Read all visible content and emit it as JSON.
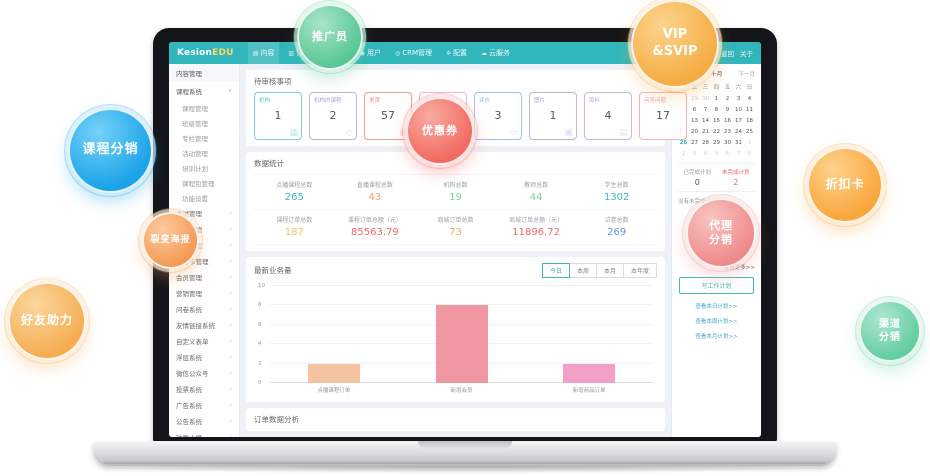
{
  "nav": {
    "logo_part1": "Kesion",
    "logo_part2": "EDU",
    "items": [
      {
        "label": "内容",
        "icon": "content-icon",
        "glyph": "▤",
        "active": true
      },
      {
        "label": "订单",
        "icon": "order-icon",
        "glyph": "▥",
        "active": false
      },
      {
        "label": "互动",
        "icon": "interaction-icon",
        "glyph": "◱",
        "active": false
      },
      {
        "label": "用户",
        "icon": "user-icon",
        "glyph": "◉",
        "active": false
      },
      {
        "label": "CRM管理",
        "icon": "crm-icon",
        "glyph": "◎",
        "active": false
      },
      {
        "label": "配置",
        "icon": "settings-icon",
        "glyph": "✲",
        "active": false
      },
      {
        "label": "云服务",
        "icon": "cloud-icon",
        "glyph": "☁",
        "active": false
      }
    ],
    "refresh_glyph": "⟳",
    "user": "admin",
    "right_links": [
      "返回",
      "关于"
    ]
  },
  "sidebar": {
    "header": "内容管理",
    "course_group": {
      "label": "课程系统",
      "children": [
        "课程管理",
        "班级管理",
        "专栏管理",
        "活动管理",
        "培训计划",
        "课程包管理",
        "功能设置"
      ]
    },
    "groups": [
      "考试管理",
      "资讯管理",
      "电商管理",
      "学习卡管理",
      "会员管理",
      "营销管理",
      "问卷系统",
      "友情链接系统",
      "自定义表单",
      "浮层系统",
      "微信公众号",
      "投票系统",
      "广告系统",
      "公告系统",
      "社群小组",
      "采集系统"
    ]
  },
  "review": {
    "title": "待审核事项",
    "cards": [
      {
        "label": "机构",
        "value": "1",
        "color": "#5ec2c7",
        "icon": "building-icon",
        "glyph": "▦"
      },
      {
        "label": "机构的课程",
        "value": "2",
        "color": "#b49de2",
        "icon": "course-icon",
        "glyph": "◇"
      },
      {
        "label": "发货",
        "value": "57",
        "color": "#f0876f",
        "icon": "truck-icon",
        "glyph": "▣"
      },
      {
        "label": "开发票",
        "value": "",
        "color": "#eda4c9",
        "icon": "invoice-icon",
        "glyph": "▤"
      },
      {
        "label": "评价",
        "value": "3",
        "color": "#8ab4e6",
        "icon": "comment-icon",
        "glyph": "▭"
      },
      {
        "label": "图片",
        "value": "1",
        "color": "#b49de2",
        "icon": "image-icon",
        "glyph": "▣"
      },
      {
        "label": "资料",
        "value": "4",
        "color": "#c2a4e8",
        "icon": "file-icon",
        "glyph": "▤"
      },
      {
        "label": "问答问题",
        "value": "17",
        "color": "#f3a09d",
        "icon": "question-icon",
        "glyph": "?"
      }
    ]
  },
  "stats": {
    "title": "数据统计",
    "rows": [
      [
        {
          "label": "点播课程总数",
          "value": "265",
          "color": "#3bb6c4"
        },
        {
          "label": "直播课程总数",
          "value": "43",
          "color": "#f5a46b"
        },
        {
          "label": "机构总数",
          "value": "19",
          "color": "#7ed09a"
        },
        {
          "label": "教师总数",
          "value": "44",
          "color": "#7ed09a"
        },
        {
          "label": "学生总数",
          "value": "1302",
          "color": "#3bb6c4"
        }
      ],
      [
        {
          "label": "课程订单总数",
          "value": "187",
          "color": "#f0c36b"
        },
        {
          "label": "课程订单总额（元）",
          "value": "85563.79",
          "color": "#ef6a6a"
        },
        {
          "label": "商城订单总数",
          "value": "73",
          "color": "#f5a46b"
        },
        {
          "label": "商城订单总额（元）",
          "value": "11896.72",
          "color": "#ef6a6a"
        },
        {
          "label": "试卷总数",
          "value": "269",
          "color": "#6b8fef"
        }
      ]
    ]
  },
  "business": {
    "title": "最新业务量",
    "tabs": [
      {
        "label": "今日",
        "active": true
      },
      {
        "label": "本周",
        "active": false
      },
      {
        "label": "本月",
        "active": false
      },
      {
        "label": "本年度",
        "active": false
      }
    ],
    "chart_data": {
      "type": "bar",
      "categories": [
        "点播课程订单",
        "新增会员",
        "新增商品订单"
      ],
      "values": [
        2,
        8,
        2
      ],
      "colors": [
        "#f5c3a0",
        "#ef98a4",
        "#f2a0c8"
      ],
      "title": "最新业务量",
      "xlabel": "",
      "ylabel": "",
      "ylim": [
        0,
        10
      ],
      "yticks": [
        0,
        2,
        4,
        6,
        8,
        10
      ],
      "grid": true,
      "legend": "none"
    }
  },
  "orders_section": {
    "title": "订单数据分析"
  },
  "calendar": {
    "prev_label": "上一月",
    "month_label": "十月",
    "next_label": "下一月",
    "weekdays": [
      "一",
      "二",
      "三",
      "四",
      "五",
      "六",
      "日"
    ],
    "days": [
      [
        28,
        29,
        30,
        1,
        2,
        3,
        4
      ],
      [
        5,
        6,
        7,
        8,
        9,
        10,
        11
      ],
      [
        12,
        13,
        14,
        15,
        16,
        17,
        18
      ],
      [
        19,
        20,
        21,
        22,
        23,
        24,
        25
      ],
      [
        26,
        27,
        28,
        29,
        30,
        31,
        1
      ],
      [
        2,
        3,
        4,
        5,
        6,
        7,
        8
      ]
    ],
    "selected_day": 26
  },
  "plans": {
    "done_label": "已完成计划",
    "done_value": "0",
    "undone_label": "未完成计划",
    "undone_value": "2",
    "empty_text": "没有未完成计划！",
    "more_link": "查看更多>>",
    "write_button": "写工作计划",
    "links": [
      "查看本日计划>>",
      "查看本周计划>>",
      "查看本月计划>>"
    ]
  },
  "bubbles": [
    {
      "id": "promoter",
      "lines": [
        "推广员"
      ],
      "color": "#57c795",
      "light": "#a9e4c9"
    },
    {
      "id": "vip",
      "lines": [
        "VIP",
        "&SVIP"
      ],
      "color": "#f6ac43",
      "light": "#fbd48d"
    },
    {
      "id": "course-dist",
      "lines": [
        "课程分销"
      ],
      "color": "#1ba2e8",
      "light": "#74d2f8"
    },
    {
      "id": "coupon",
      "lines": [
        "优惠券"
      ],
      "color": "#f26a60",
      "light": "#f8aba1"
    },
    {
      "id": "discount-card",
      "lines": [
        "折扣卡"
      ],
      "color": "#f9a63c",
      "light": "#fdd28c"
    },
    {
      "id": "fission-poster",
      "lines": [
        "裂变海报"
      ],
      "color": "#f59a56",
      "light": "#fbcb9f"
    },
    {
      "id": "agent-dist",
      "lines": [
        "代理",
        "分销"
      ],
      "color": "#ee8a8a",
      "light": "#f8c5c2"
    },
    {
      "id": "friend-boost",
      "lines": [
        "好友助力"
      ],
      "color": "#f5ad52",
      "light": "#fbd69d"
    },
    {
      "id": "channel-dist",
      "lines": [
        "渠道",
        "分销"
      ],
      "color": "#62cda0",
      "light": "#b0e7d0"
    }
  ],
  "colors": {
    "navbar": "#31b6bb",
    "accent": "#3db5c0",
    "link": "#3da3c9",
    "main_bg": "#eef1f5",
    "logo_accent": "#ffd95e"
  }
}
